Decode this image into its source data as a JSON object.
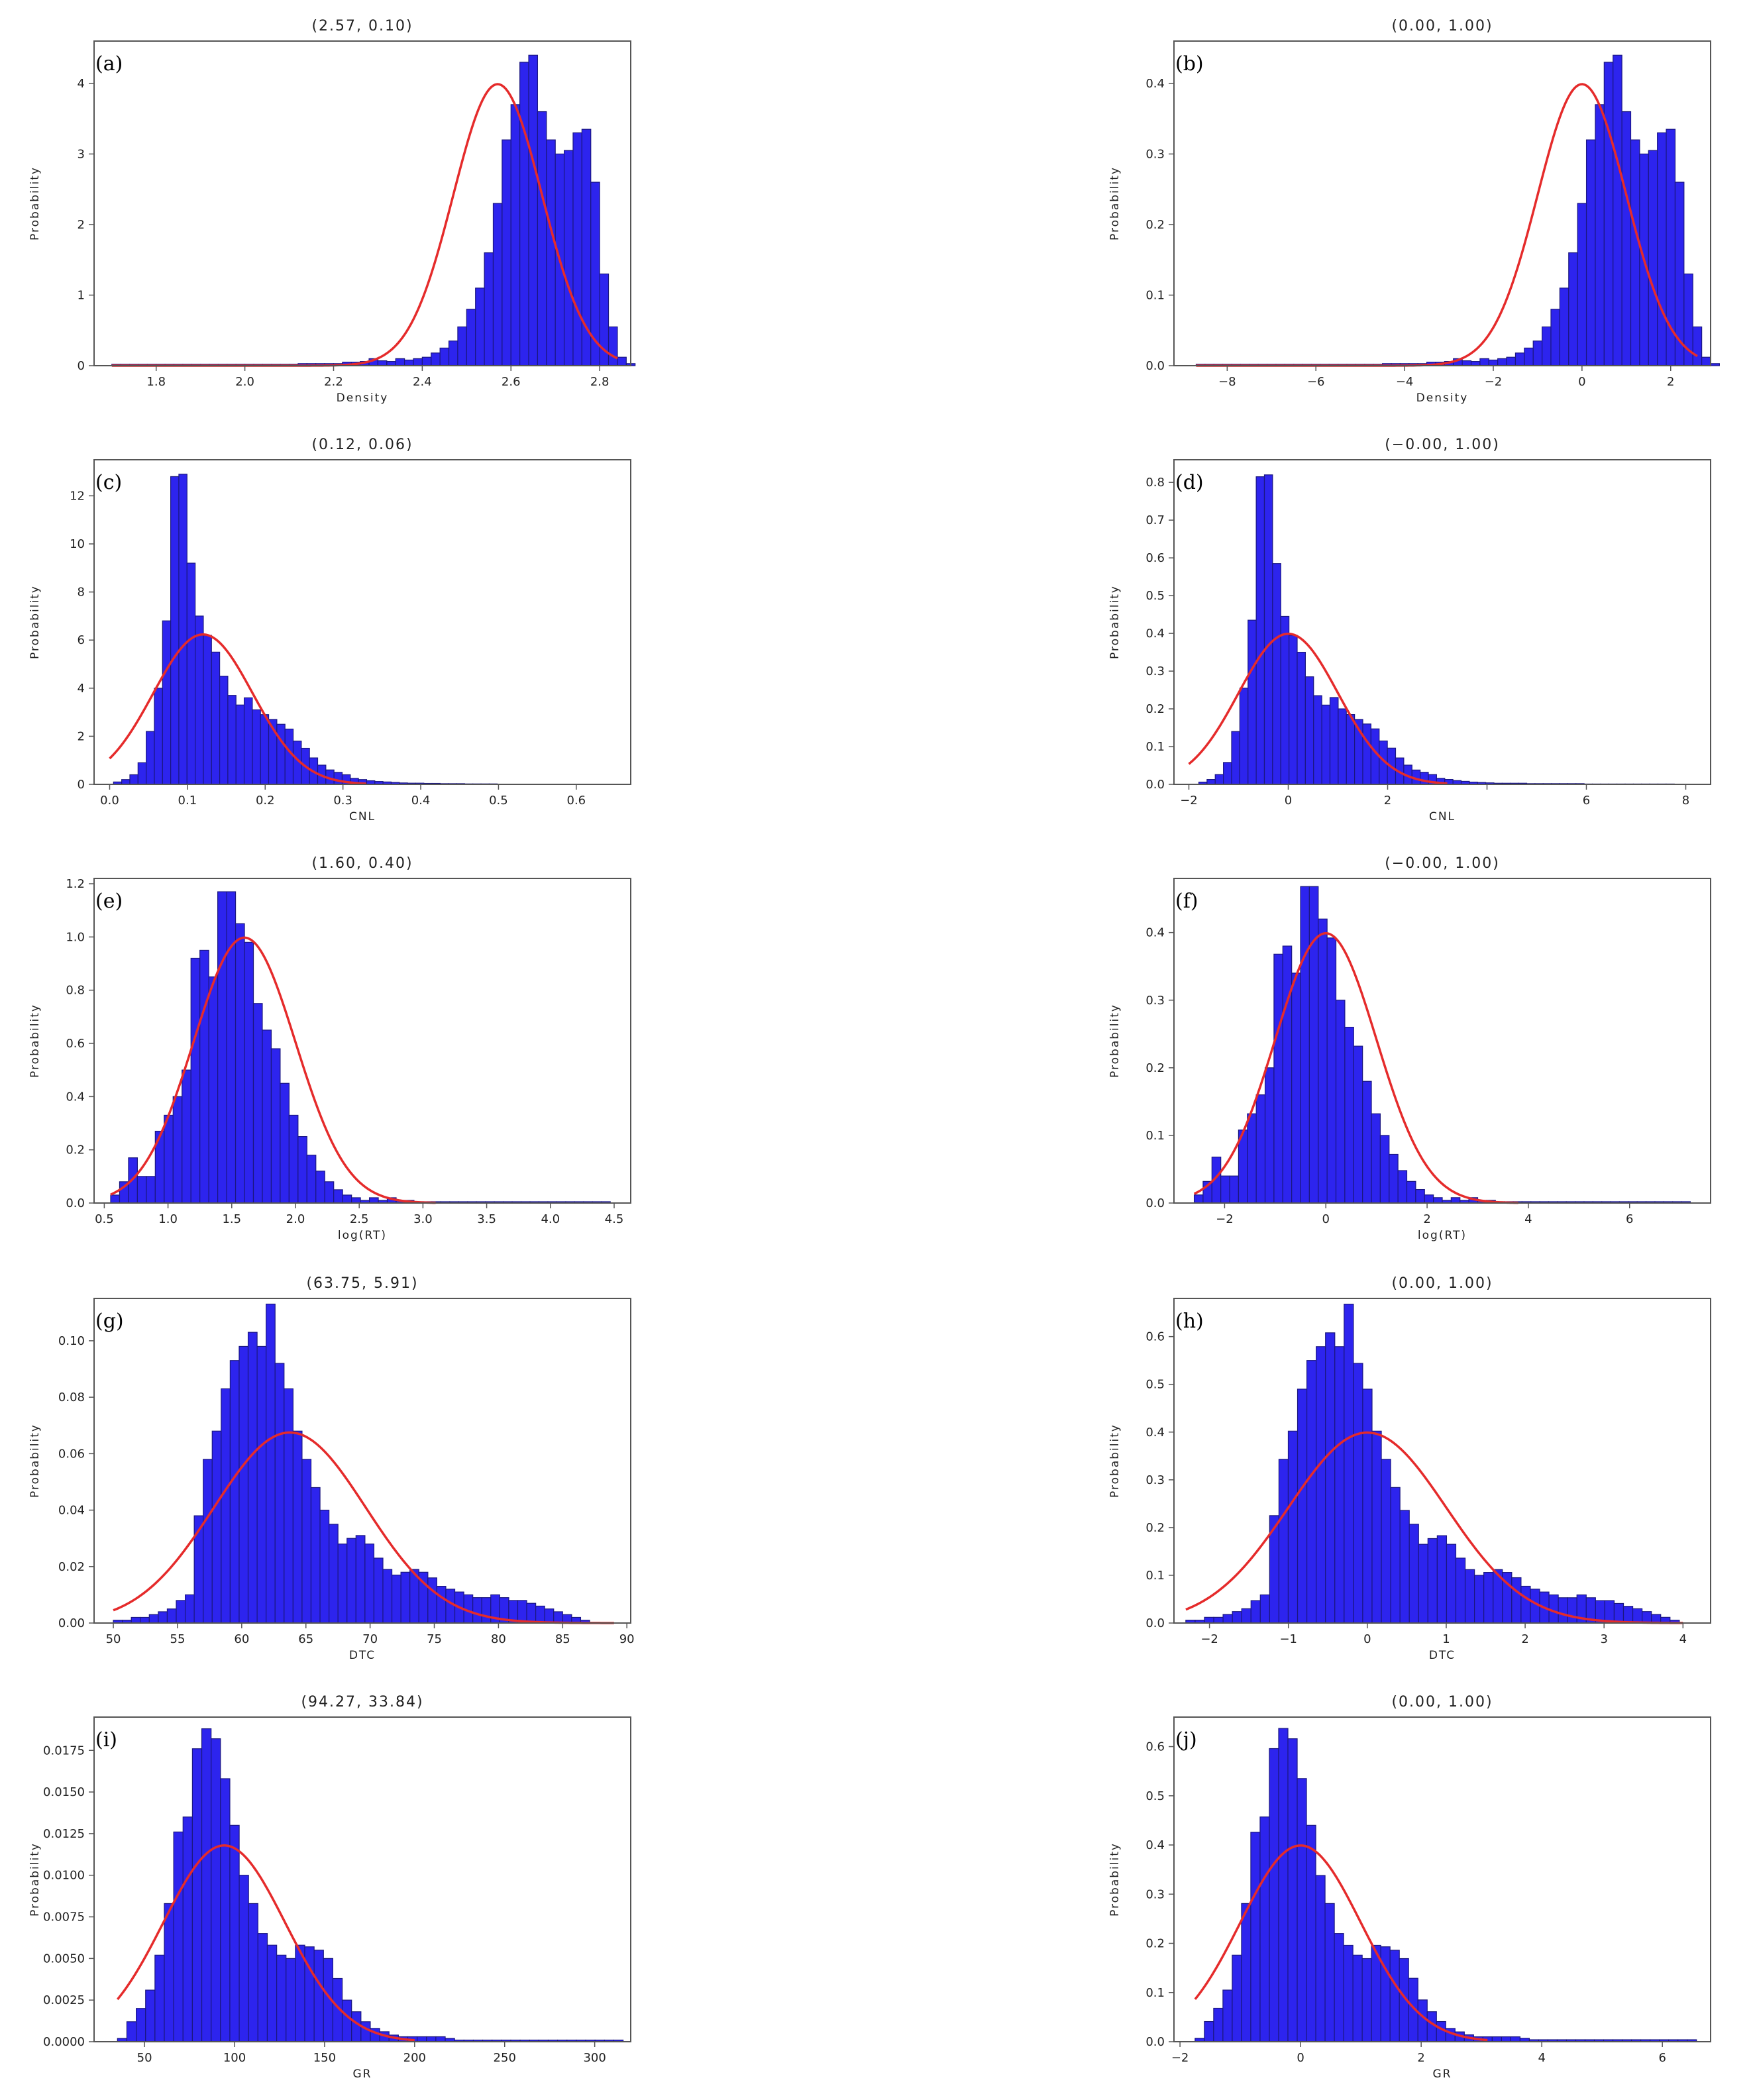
{
  "chart_data": [
    {
      "type": "histogram",
      "panel": "(a)",
      "title": "(2.57, 0.10)",
      "xlabel": "Density",
      "ylabel": "Probability",
      "xlim": [
        1.66,
        2.87
      ],
      "ylim": [
        0,
        4.6
      ],
      "xticks": [
        1.8,
        2.0,
        2.2,
        2.4,
        2.6,
        2.8
      ],
      "xtick_labels": [
        "1.8",
        "2.0",
        "2.2",
        "2.4",
        "2.6",
        "2.8"
      ],
      "yticks": [
        0,
        1,
        2,
        3,
        4
      ],
      "ytick_labels": [
        "0",
        "1",
        "2",
        "3",
        "4"
      ],
      "bins": {
        "start": 1.7,
        "width": 0.02,
        "values": [
          0.02,
          0.02,
          0.02,
          0.02,
          0.02,
          0.02,
          0.02,
          0.02,
          0.02,
          0.02,
          0.02,
          0.02,
          0.02,
          0.02,
          0.02,
          0.02,
          0.02,
          0.02,
          0.02,
          0.02,
          0.02,
          0.03,
          0.03,
          0.03,
          0.03,
          0.03,
          0.05,
          0.05,
          0.06,
          0.1,
          0.07,
          0.06,
          0.1,
          0.08,
          0.1,
          0.12,
          0.18,
          0.25,
          0.35,
          0.55,
          0.8,
          1.1,
          1.6,
          2.3,
          3.2,
          3.7,
          4.3,
          4.4,
          3.6,
          3.2,
          3.0,
          3.05,
          3.3,
          3.35,
          2.6,
          1.3,
          0.55,
          0.12,
          0.03
        ]
      },
      "curve": {
        "mean": 2.57,
        "std": 0.1,
        "x_range": [
          1.7,
          2.84
        ]
      },
      "grid": false
    },
    {
      "type": "histogram",
      "panel": "(b)",
      "title": "(0.00, 1.00)",
      "xlabel": "Density",
      "ylabel": "Probability",
      "xlim": [
        -9.2,
        2.9
      ],
      "ylim": [
        0,
        0.46
      ],
      "xticks": [
        -8,
        -6,
        -4,
        -2,
        0,
        2
      ],
      "xtick_labels": [
        "−8",
        "−6",
        "−4",
        "−2",
        "0",
        "2"
      ],
      "yticks": [
        0,
        0.1,
        0.2,
        0.3,
        0.4
      ],
      "ytick_labels": [
        "0.0",
        "0.1",
        "0.2",
        "0.3",
        "0.4"
      ],
      "bins": {
        "start": -8.7,
        "width": 0.2,
        "values": [
          0.002,
          0.002,
          0.002,
          0.002,
          0.002,
          0.002,
          0.002,
          0.002,
          0.002,
          0.002,
          0.002,
          0.002,
          0.002,
          0.002,
          0.002,
          0.002,
          0.002,
          0.002,
          0.002,
          0.002,
          0.002,
          0.003,
          0.003,
          0.003,
          0.003,
          0.003,
          0.005,
          0.005,
          0.006,
          0.01,
          0.007,
          0.006,
          0.01,
          0.008,
          0.01,
          0.012,
          0.018,
          0.025,
          0.035,
          0.055,
          0.08,
          0.11,
          0.16,
          0.23,
          0.32,
          0.37,
          0.43,
          0.44,
          0.36,
          0.32,
          0.3,
          0.305,
          0.33,
          0.335,
          0.26,
          0.13,
          0.055,
          0.012,
          0.003
        ]
      },
      "curve": {
        "mean": 0.0,
        "std": 1.0,
        "x_range": [
          -8.7,
          2.6
        ]
      },
      "grid": false
    },
    {
      "type": "histogram",
      "panel": "(c)",
      "title": "(0.12, 0.06)",
      "xlabel": "CNL",
      "ylabel": "Probability",
      "xlim": [
        -0.02,
        0.67
      ],
      "ylim": [
        0,
        13.5
      ],
      "xticks": [
        0.0,
        0.1,
        0.2,
        0.3,
        0.4,
        0.5,
        0.6
      ],
      "xtick_labels": [
        "0.0",
        "0.1",
        "0.2",
        "0.3",
        "0.4",
        "0.5",
        "0.6"
      ],
      "yticks": [
        0,
        2,
        4,
        6,
        8,
        10,
        12
      ],
      "ytick_labels": [
        "0",
        "2",
        "4",
        "6",
        "8",
        "10",
        "12"
      ],
      "bins": {
        "start": 0.005,
        "width": 0.0105,
        "values": [
          0.1,
          0.2,
          0.4,
          0.9,
          2.2,
          4.0,
          6.8,
          12.8,
          12.9,
          9.2,
          7.0,
          6.2,
          5.5,
          4.5,
          3.7,
          3.3,
          3.6,
          3.1,
          2.9,
          2.7,
          2.5,
          2.3,
          1.8,
          1.5,
          1.1,
          0.8,
          0.6,
          0.5,
          0.4,
          0.25,
          0.2,
          0.15,
          0.12,
          0.1,
          0.08,
          0.06,
          0.05,
          0.05,
          0.04,
          0.04,
          0.03,
          0.03,
          0.03,
          0.02,
          0.02,
          0.02,
          0.02,
          0.01,
          0.01,
          0.01,
          0.01,
          0.01,
          0.01,
          0.01,
          0.01,
          0.01,
          0.01,
          0.01
        ]
      },
      "curve": {
        "mean": 0.12,
        "std": 0.064,
        "x_range": [
          0.0,
          0.33
        ]
      },
      "grid": false
    },
    {
      "type": "histogram",
      "panel": "(d)",
      "title": "(−0.00, 1.00)",
      "xlabel": "CNL",
      "ylabel": "Probability",
      "xlim": [
        -2.3,
        8.5
      ],
      "ylim": [
        0,
        0.86
      ],
      "xticks": [
        -2,
        0,
        2,
        4,
        6,
        8
      ],
      "xtick_labels": [
        "−2",
        "0",
        "2",
        "",
        "6",
        "8"
      ],
      "yticks": [
        0,
        0.1,
        0.2,
        0.3,
        0.4,
        0.5,
        0.6,
        0.7,
        0.8
      ],
      "ytick_labels": [
        "0.0",
        "0.1",
        "0.2",
        "0.3",
        "0.4",
        "0.5",
        "0.6",
        "0.7",
        "0.8"
      ],
      "bins": {
        "start": -1.8,
        "width": 0.165,
        "values": [
          0.006,
          0.013,
          0.026,
          0.058,
          0.14,
          0.255,
          0.435,
          0.815,
          0.82,
          0.585,
          0.445,
          0.395,
          0.35,
          0.285,
          0.235,
          0.21,
          0.23,
          0.2,
          0.185,
          0.172,
          0.16,
          0.147,
          0.115,
          0.096,
          0.07,
          0.051,
          0.038,
          0.032,
          0.026,
          0.016,
          0.013,
          0.01,
          0.008,
          0.006,
          0.005,
          0.004,
          0.003,
          0.003,
          0.003,
          0.003,
          0.002,
          0.002,
          0.002,
          0.002,
          0.002,
          0.002,
          0.002,
          0.001,
          0.001,
          0.001,
          0.001,
          0.001,
          0.001,
          0.001,
          0.001,
          0.001,
          0.001,
          0.001
        ]
      },
      "curve": {
        "mean": 0.0,
        "std": 1.0,
        "x_range": [
          -2.0,
          3.2
        ]
      },
      "grid": false
    },
    {
      "type": "histogram",
      "panel": "(e)",
      "title": "(1.60, 0.40)",
      "xlabel": "log(RT)",
      "ylabel": "Probability",
      "xlim": [
        0.42,
        4.63
      ],
      "ylim": [
        0,
        1.22
      ],
      "xticks": [
        0.5,
        1.0,
        1.5,
        2.0,
        2.5,
        3.0,
        3.5,
        4.0,
        4.5
      ],
      "xtick_labels": [
        "0.5",
        "1.0",
        "1.5",
        "2.0",
        "2.5",
        "3.0",
        "3.5",
        "4.0",
        "4.5"
      ],
      "yticks": [
        0,
        0.2,
        0.4,
        0.6,
        0.8,
        1.0,
        1.2
      ],
      "ytick_labels": [
        "0.0",
        "0.2",
        "0.4",
        "0.6",
        "0.8",
        "1.0",
        "1.2"
      ],
      "bins": {
        "start": 0.55,
        "width": 0.07,
        "values": [
          0.03,
          0.08,
          0.17,
          0.1,
          0.1,
          0.27,
          0.33,
          0.4,
          0.5,
          0.92,
          0.95,
          0.85,
          1.17,
          1.17,
          1.05,
          0.98,
          0.75,
          0.65,
          0.58,
          0.45,
          0.33,
          0.25,
          0.18,
          0.12,
          0.08,
          0.05,
          0.03,
          0.02,
          0.01,
          0.02,
          0.01,
          0.02,
          0.01,
          0.01,
          0.005,
          0.005,
          0.005,
          0.005,
          0.005,
          0.005,
          0.005,
          0.005,
          0.005,
          0.005,
          0.005,
          0.005,
          0.005,
          0.005,
          0.005,
          0.005,
          0.005,
          0.005,
          0.005,
          0.005,
          0.005,
          0.005
        ]
      },
      "curve": {
        "mean": 1.6,
        "std": 0.4,
        "x_range": [
          0.55,
          3.1
        ]
      },
      "grid": false
    },
    {
      "type": "histogram",
      "panel": "(f)",
      "title": "(−0.00, 1.00)",
      "xlabel": "log(RT)",
      "ylabel": "Probability",
      "xlim": [
        -3.0,
        7.6
      ],
      "ylim": [
        0,
        0.48
      ],
      "xticks": [
        -2,
        0,
        2,
        4,
        6
      ],
      "xtick_labels": [
        "−2",
        "0",
        "2",
        "4",
        "6"
      ],
      "yticks": [
        0,
        0.1,
        0.2,
        0.3,
        0.4
      ],
      "ytick_labels": [
        "0.0",
        "0.1",
        "0.2",
        "0.3",
        "0.4"
      ],
      "bins": {
        "start": -2.6,
        "width": 0.175,
        "values": [
          0.012,
          0.032,
          0.068,
          0.04,
          0.04,
          0.108,
          0.132,
          0.16,
          0.2,
          0.368,
          0.38,
          0.34,
          0.468,
          0.468,
          0.42,
          0.392,
          0.3,
          0.26,
          0.232,
          0.18,
          0.132,
          0.1,
          0.072,
          0.048,
          0.032,
          0.02,
          0.012,
          0.008,
          0.004,
          0.008,
          0.004,
          0.008,
          0.004,
          0.004,
          0.002,
          0.002,
          0.002,
          0.002,
          0.002,
          0.002,
          0.002,
          0.002,
          0.002,
          0.002,
          0.002,
          0.002,
          0.002,
          0.002,
          0.002,
          0.002,
          0.002,
          0.002,
          0.002,
          0.002,
          0.002,
          0.002
        ]
      },
      "curve": {
        "mean": 0.0,
        "std": 1.0,
        "x_range": [
          -2.6,
          3.8
        ]
      },
      "grid": false
    },
    {
      "type": "histogram",
      "panel": "(g)",
      "title": "(63.75, 5.91)",
      "xlabel": "DTC",
      "ylabel": "Probability",
      "xlim": [
        48.5,
        90.3
      ],
      "ylim": [
        0,
        0.115
      ],
      "xticks": [
        50,
        55,
        60,
        65,
        70,
        75,
        80,
        85,
        90
      ],
      "xtick_labels": [
        "50",
        "55",
        "60",
        "65",
        "70",
        "75",
        "80",
        "85",
        "90"
      ],
      "yticks": [
        0,
        0.02,
        0.04,
        0.06,
        0.08,
        0.1
      ],
      "ytick_labels": [
        "0.00",
        "0.02",
        "0.04",
        "0.06",
        "0.08",
        "0.10"
      ],
      "bins": {
        "start": 50,
        "width": 0.7,
        "values": [
          0.001,
          0.001,
          0.002,
          0.002,
          0.003,
          0.004,
          0.005,
          0.008,
          0.01,
          0.038,
          0.058,
          0.068,
          0.083,
          0.093,
          0.098,
          0.103,
          0.098,
          0.113,
          0.092,
          0.083,
          0.068,
          0.058,
          0.048,
          0.04,
          0.035,
          0.028,
          0.03,
          0.031,
          0.028,
          0.023,
          0.019,
          0.017,
          0.018,
          0.019,
          0.018,
          0.016,
          0.013,
          0.012,
          0.011,
          0.01,
          0.009,
          0.009,
          0.01,
          0.009,
          0.008,
          0.008,
          0.007,
          0.006,
          0.005,
          0.004,
          0.003,
          0.002,
          0.001
        ]
      },
      "curve": {
        "mean": 63.75,
        "std": 5.91,
        "x_range": [
          50,
          89
        ]
      },
      "grid": false
    },
    {
      "type": "histogram",
      "panel": "(h)",
      "title": "(0.00, 1.00)",
      "xlabel": "DTC",
      "ylabel": "Probability",
      "xlim": [
        -2.45,
        4.35
      ],
      "ylim": [
        0,
        0.68
      ],
      "xticks": [
        -2,
        -1,
        0,
        1,
        2,
        3,
        4
      ],
      "xtick_labels": [
        "−2",
        "−1",
        "0",
        "1",
        "2",
        "3",
        "4"
      ],
      "yticks": [
        0,
        0.1,
        0.2,
        0.3,
        0.4,
        0.5,
        0.6
      ],
      "ytick_labels": [
        "0.0",
        "0.1",
        "0.2",
        "0.3",
        "0.4",
        "0.5",
        "0.6"
      ],
      "bins": {
        "start": -2.3,
        "width": 0.118,
        "values": [
          0.006,
          0.006,
          0.012,
          0.012,
          0.018,
          0.024,
          0.03,
          0.047,
          0.059,
          0.225,
          0.343,
          0.402,
          0.49,
          0.55,
          0.579,
          0.608,
          0.579,
          0.668,
          0.544,
          0.49,
          0.402,
          0.343,
          0.284,
          0.236,
          0.207,
          0.165,
          0.177,
          0.183,
          0.165,
          0.136,
          0.112,
          0.1,
          0.106,
          0.112,
          0.106,
          0.095,
          0.077,
          0.071,
          0.065,
          0.059,
          0.053,
          0.053,
          0.059,
          0.053,
          0.047,
          0.047,
          0.041,
          0.035,
          0.03,
          0.024,
          0.018,
          0.012,
          0.006
        ]
      },
      "curve": {
        "mean": 0.0,
        "std": 1.0,
        "x_range": [
          -2.3,
          4.0
        ]
      },
      "grid": false
    },
    {
      "type": "histogram",
      "panel": "(i)",
      "title": "(94.27, 33.84)",
      "xlabel": "GR",
      "ylabel": "Probability",
      "xlim": [
        22,
        320
      ],
      "ylim": [
        0,
        0.0195
      ],
      "xticks": [
        50,
        100,
        150,
        200,
        250,
        300
      ],
      "xtick_labels": [
        "50",
        "100",
        "150",
        "200",
        "250",
        "300"
      ],
      "yticks": [
        0,
        0.0025,
        0.005,
        0.0075,
        0.01,
        0.0125,
        0.015,
        0.0175
      ],
      "ytick_labels": [
        "0.0000",
        "0.0025",
        "0.0050",
        "0.0075",
        "0.0100",
        "0.0125",
        "0.0150",
        "0.0175"
      ],
      "bins": {
        "start": 35,
        "width": 5.2,
        "values": [
          0.0002,
          0.0012,
          0.002,
          0.0031,
          0.0052,
          0.0083,
          0.0126,
          0.0135,
          0.0176,
          0.0188,
          0.0182,
          0.0158,
          0.013,
          0.01,
          0.0083,
          0.0065,
          0.0058,
          0.0052,
          0.005,
          0.0058,
          0.0057,
          0.0055,
          0.005,
          0.0038,
          0.0025,
          0.0018,
          0.0012,
          0.0008,
          0.0006,
          0.0004,
          0.0003,
          0.0003,
          0.0003,
          0.0003,
          0.0003,
          0.0002,
          0.0001,
          0.0001,
          0.0001,
          0.0001,
          0.0001,
          0.0001,
          0.0001,
          0.0001,
          0.0001,
          0.0001,
          0.0001,
          0.0001,
          0.0001,
          0.0001,
          0.0001,
          0.0001,
          0.0001,
          0.0001
        ]
      },
      "curve": {
        "mean": 94.27,
        "std": 33.84,
        "x_range": [
          35,
          200
        ]
      },
      "grid": false
    },
    {
      "type": "histogram",
      "panel": "(j)",
      "title": "(0.00, 1.00)",
      "xlabel": "GR",
      "ylabel": "Probability",
      "xlim": [
        -2.1,
        6.8
      ],
      "ylim": [
        0,
        0.66
      ],
      "xticks": [
        -2,
        0,
        2,
        4,
        6
      ],
      "xtick_labels": [
        "−2",
        "0",
        "2",
        "4",
        "6"
      ],
      "yticks": [
        0,
        0.1,
        0.2,
        0.3,
        0.4,
        0.5,
        0.6
      ],
      "ytick_labels": [
        "0.0",
        "0.1",
        "0.2",
        "0.3",
        "0.4",
        "0.5",
        "0.6"
      ],
      "bins": {
        "start": -1.75,
        "width": 0.154,
        "values": [
          0.007,
          0.041,
          0.068,
          0.105,
          0.176,
          0.281,
          0.426,
          0.457,
          0.596,
          0.637,
          0.616,
          0.535,
          0.44,
          0.338,
          0.281,
          0.22,
          0.196,
          0.176,
          0.169,
          0.196,
          0.193,
          0.186,
          0.169,
          0.129,
          0.085,
          0.061,
          0.041,
          0.027,
          0.02,
          0.014,
          0.01,
          0.01,
          0.01,
          0.01,
          0.01,
          0.007,
          0.004,
          0.004,
          0.004,
          0.004,
          0.004,
          0.004,
          0.004,
          0.004,
          0.004,
          0.004,
          0.004,
          0.004,
          0.004,
          0.004,
          0.004,
          0.004,
          0.004,
          0.004
        ]
      },
      "curve": {
        "mean": 0.0,
        "std": 1.0,
        "x_range": [
          -1.75,
          3.1
        ]
      },
      "grid": false
    }
  ]
}
